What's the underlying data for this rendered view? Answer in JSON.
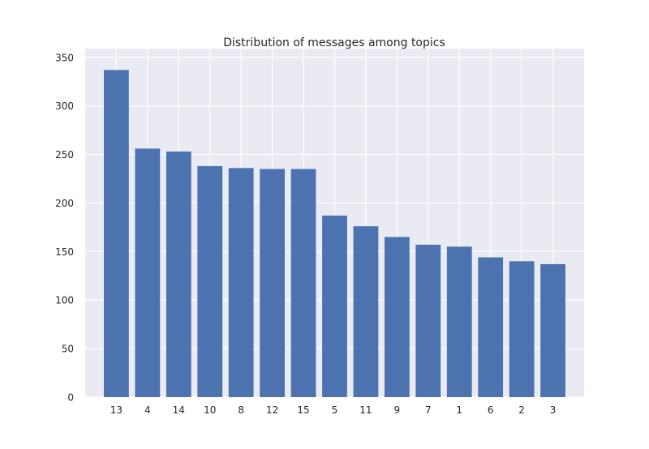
{
  "chart_data": {
    "type": "bar",
    "title": "Distribution of messages among topics",
    "xlabel": "",
    "ylabel": "",
    "categories": [
      "13",
      "4",
      "14",
      "10",
      "8",
      "12",
      "15",
      "5",
      "11",
      "9",
      "7",
      "1",
      "6",
      "2",
      "3"
    ],
    "values": [
      337,
      256,
      253,
      238,
      236,
      235,
      235,
      187,
      176,
      165,
      157,
      155,
      144,
      140,
      137
    ],
    "ylim": [
      0,
      359
    ],
    "yticks": [
      0,
      50,
      100,
      150,
      200,
      250,
      300,
      350
    ],
    "grid": true,
    "colors": {
      "bar": "#4c72b0",
      "background": "#eaeaf2",
      "grid": "#ffffff"
    }
  }
}
